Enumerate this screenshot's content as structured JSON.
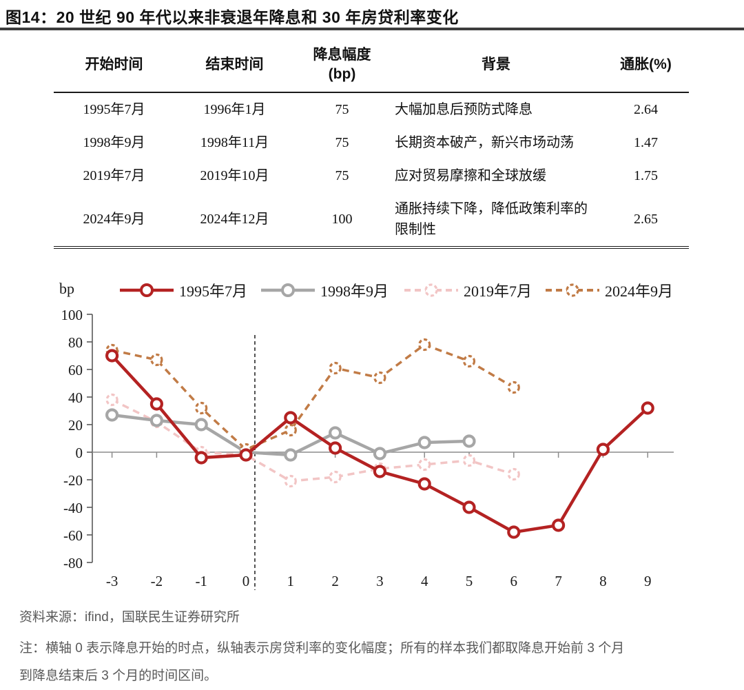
{
  "title": "图14：20 世纪 90 年代以来非衰退年降息和 30 年房贷利率变化",
  "table": {
    "headers": [
      "开始时间",
      "结束时间",
      "降息幅度\n(bp)",
      "背景",
      "通胀(%)"
    ],
    "rows": [
      [
        "1995年7月",
        "1996年1月",
        "75",
        "大幅加息后预防式降息",
        "2.64"
      ],
      [
        "1998年9月",
        "1998年11月",
        "75",
        "长期资本破产，新兴市场动荡",
        "1.47"
      ],
      [
        "2019年7月",
        "2019年10月",
        "75",
        "应对贸易摩擦和全球放缓",
        "1.75"
      ],
      [
        "2024年9月",
        "2024年12月",
        "100",
        "通胀持续下降，降低政策利率的限制性",
        "2.65"
      ]
    ]
  },
  "chart_data": {
    "type": "line",
    "x": [
      -3,
      -2,
      -1,
      0,
      1,
      2,
      3,
      4,
      5,
      6,
      7,
      8,
      9
    ],
    "xlabel": "",
    "ylabel": "bp",
    "ylim": [
      -80,
      100
    ],
    "ytick_step": 20,
    "grid": false,
    "legend_position": "top",
    "vline_x": 0.2,
    "axis_color": "#8c8c8c",
    "series": [
      {
        "name": "1995年7月",
        "color": "#B42222",
        "style": "solid",
        "values": [
          70,
          35,
          -4,
          -2,
          25,
          3,
          -14,
          -23,
          -40,
          -58,
          -53,
          2,
          32
        ]
      },
      {
        "name": "1998年9月",
        "color": "#A6A6A6",
        "style": "solid",
        "values": [
          27,
          23,
          20,
          0,
          -2,
          14,
          -1,
          7,
          8,
          null,
          null,
          null,
          null
        ]
      },
      {
        "name": "2019年7月",
        "color": "#F2C5C5",
        "style": "dashed",
        "values": [
          38,
          22,
          0,
          -2,
          -21,
          -18,
          -12,
          -9,
          -6,
          -16,
          null,
          null,
          null
        ]
      },
      {
        "name": "2024年9月",
        "color": "#C17B46",
        "style": "dashed",
        "values": [
          74,
          67,
          32,
          2,
          16,
          61,
          54,
          78,
          66,
          47,
          null,
          null,
          null
        ]
      }
    ]
  },
  "footer": {
    "source": "资料来源：ifind，国联民生证券研究所",
    "note_lines": [
      "注：横轴 0 表示降息开始的时点，纵轴表示房贷利率的变化幅度；所有的样本我们都取降息开始前 3 个月",
      "到降息结束后 3 个月的时间区间。"
    ]
  }
}
